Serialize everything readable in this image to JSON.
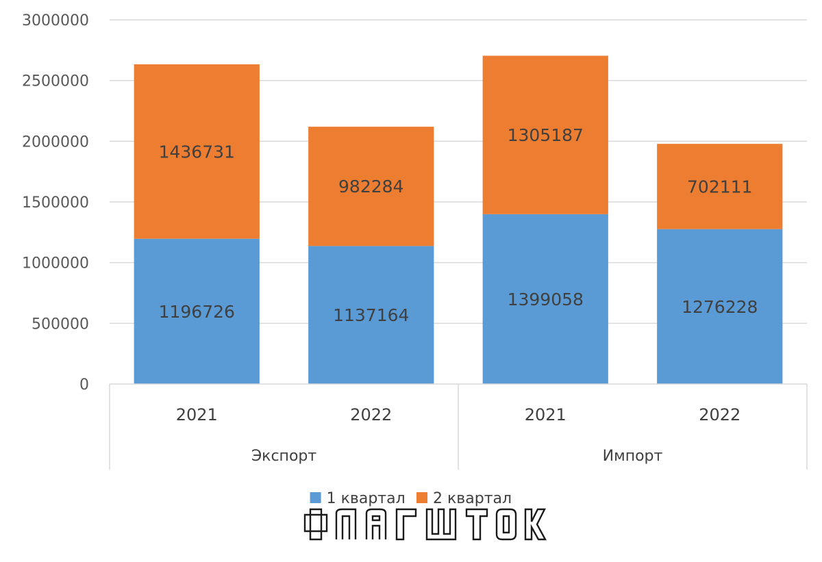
{
  "chart_data": {
    "type": "bar",
    "stacked": true,
    "groups": [
      {
        "label": "Экспорт",
        "categories": [
          "2021",
          "2022"
        ]
      },
      {
        "label": "Импорт",
        "categories": [
          "2021",
          "2022"
        ]
      }
    ],
    "categories": [
      "2021",
      "2022",
      "2021",
      "2022"
    ],
    "series": [
      {
        "name": "1 квартал",
        "color": "#5b9bd5",
        "values": [
          1196726,
          1137164,
          1399058,
          1276228
        ]
      },
      {
        "name": "2 квартал",
        "color": "#ed7d31",
        "values": [
          1436731,
          982284,
          1305187,
          702111
        ]
      }
    ],
    "ylim": [
      0,
      3000000
    ],
    "yticks": [
      "0",
      "500000",
      "1000000",
      "1500000",
      "2000000",
      "2500000",
      "3000000"
    ],
    "grid": true,
    "legend_position": "bottom"
  },
  "logo": {
    "text": "ФЛАГШТОК",
    "icon": "flagshtok-logo"
  }
}
